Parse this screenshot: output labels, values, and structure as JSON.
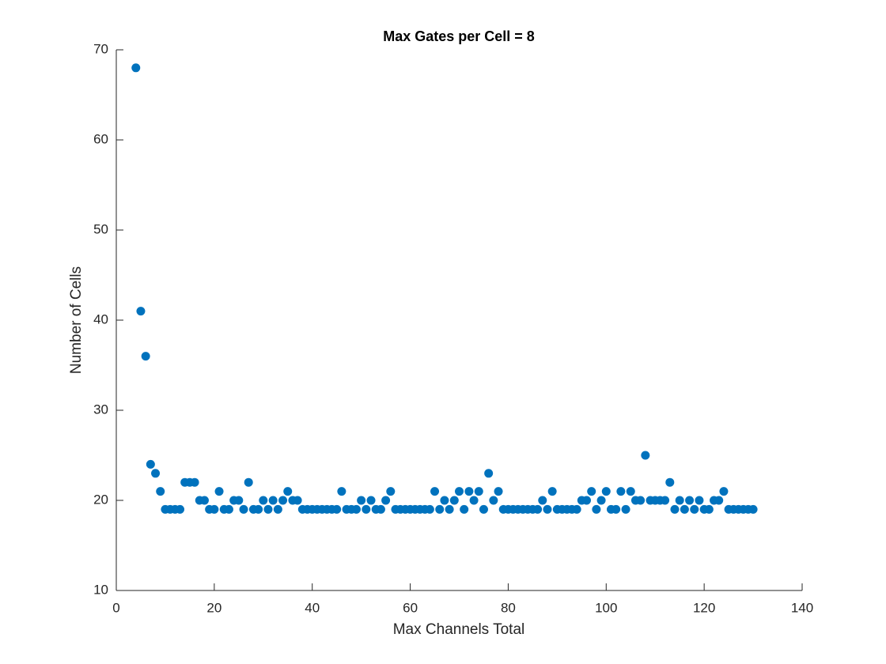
{
  "chart_data": {
    "type": "scatter",
    "title": "Max Gates per Cell = 8",
    "x_label": "Max Channels Total",
    "y_label": "Number of Cells",
    "x": [
      4,
      5,
      6,
      7,
      8,
      9,
      10,
      11,
      12,
      13,
      14,
      15,
      16,
      17,
      18,
      19,
      20,
      21,
      22,
      23,
      24,
      25,
      26,
      27,
      28,
      29,
      30,
      31,
      32,
      33,
      34,
      35,
      36,
      37,
      38,
      39,
      40,
      41,
      42,
      43,
      44,
      45,
      46,
      47,
      48,
      49,
      50,
      51,
      52,
      53,
      54,
      55,
      56,
      57,
      58,
      59,
      60,
      61,
      62,
      63,
      64,
      65,
      66,
      67,
      68,
      69,
      70,
      71,
      72,
      73,
      74,
      75,
      76,
      77,
      78,
      79,
      80,
      81,
      82,
      83,
      84,
      85,
      86,
      87,
      88,
      89,
      90,
      91,
      92,
      93,
      94,
      95,
      96,
      97,
      98,
      99,
      100,
      101,
      102,
      103,
      104,
      105,
      106,
      107,
      108,
      109,
      110,
      111,
      112,
      113,
      114,
      115,
      116,
      117,
      118,
      119,
      120,
      121,
      122,
      123,
      124,
      125,
      126,
      127,
      128,
      129,
      130
    ],
    "values": [
      68,
      41,
      36,
      24,
      23,
      21,
      19,
      19,
      19,
      19,
      22,
      22,
      22,
      20,
      20,
      19,
      19,
      21,
      19,
      19,
      20,
      20,
      19,
      22,
      19,
      19,
      20,
      19,
      20,
      19,
      20,
      21,
      20,
      20,
      19,
      19,
      19,
      19,
      19,
      19,
      19,
      19,
      21,
      19,
      19,
      19,
      20,
      19,
      20,
      19,
      19,
      20,
      21,
      19,
      19,
      19,
      19,
      19,
      19,
      19,
      19,
      21,
      19,
      20,
      19,
      20,
      21,
      19,
      21,
      20,
      21,
      19,
      23,
      20,
      21,
      19,
      19,
      19,
      19,
      19,
      19,
      19,
      19,
      20,
      19,
      21,
      19,
      19,
      19,
      19,
      19,
      20,
      20,
      21,
      19,
      20,
      21,
      19,
      19,
      21,
      19,
      21,
      20,
      20,
      25,
      20,
      20,
      20,
      20,
      22,
      19,
      20,
      19,
      20,
      19,
      20,
      19,
      19,
      20,
      20,
      21,
      19,
      19,
      19,
      19,
      19,
      19
    ],
    "color": "#0072BD",
    "xlim": [
      0,
      140
    ],
    "xticks": [
      0,
      20,
      40,
      60,
      80,
      100,
      120,
      140
    ],
    "ylim": [
      10,
      70
    ],
    "yticks": [
      10,
      20,
      30,
      40,
      50,
      60,
      70
    ]
  }
}
